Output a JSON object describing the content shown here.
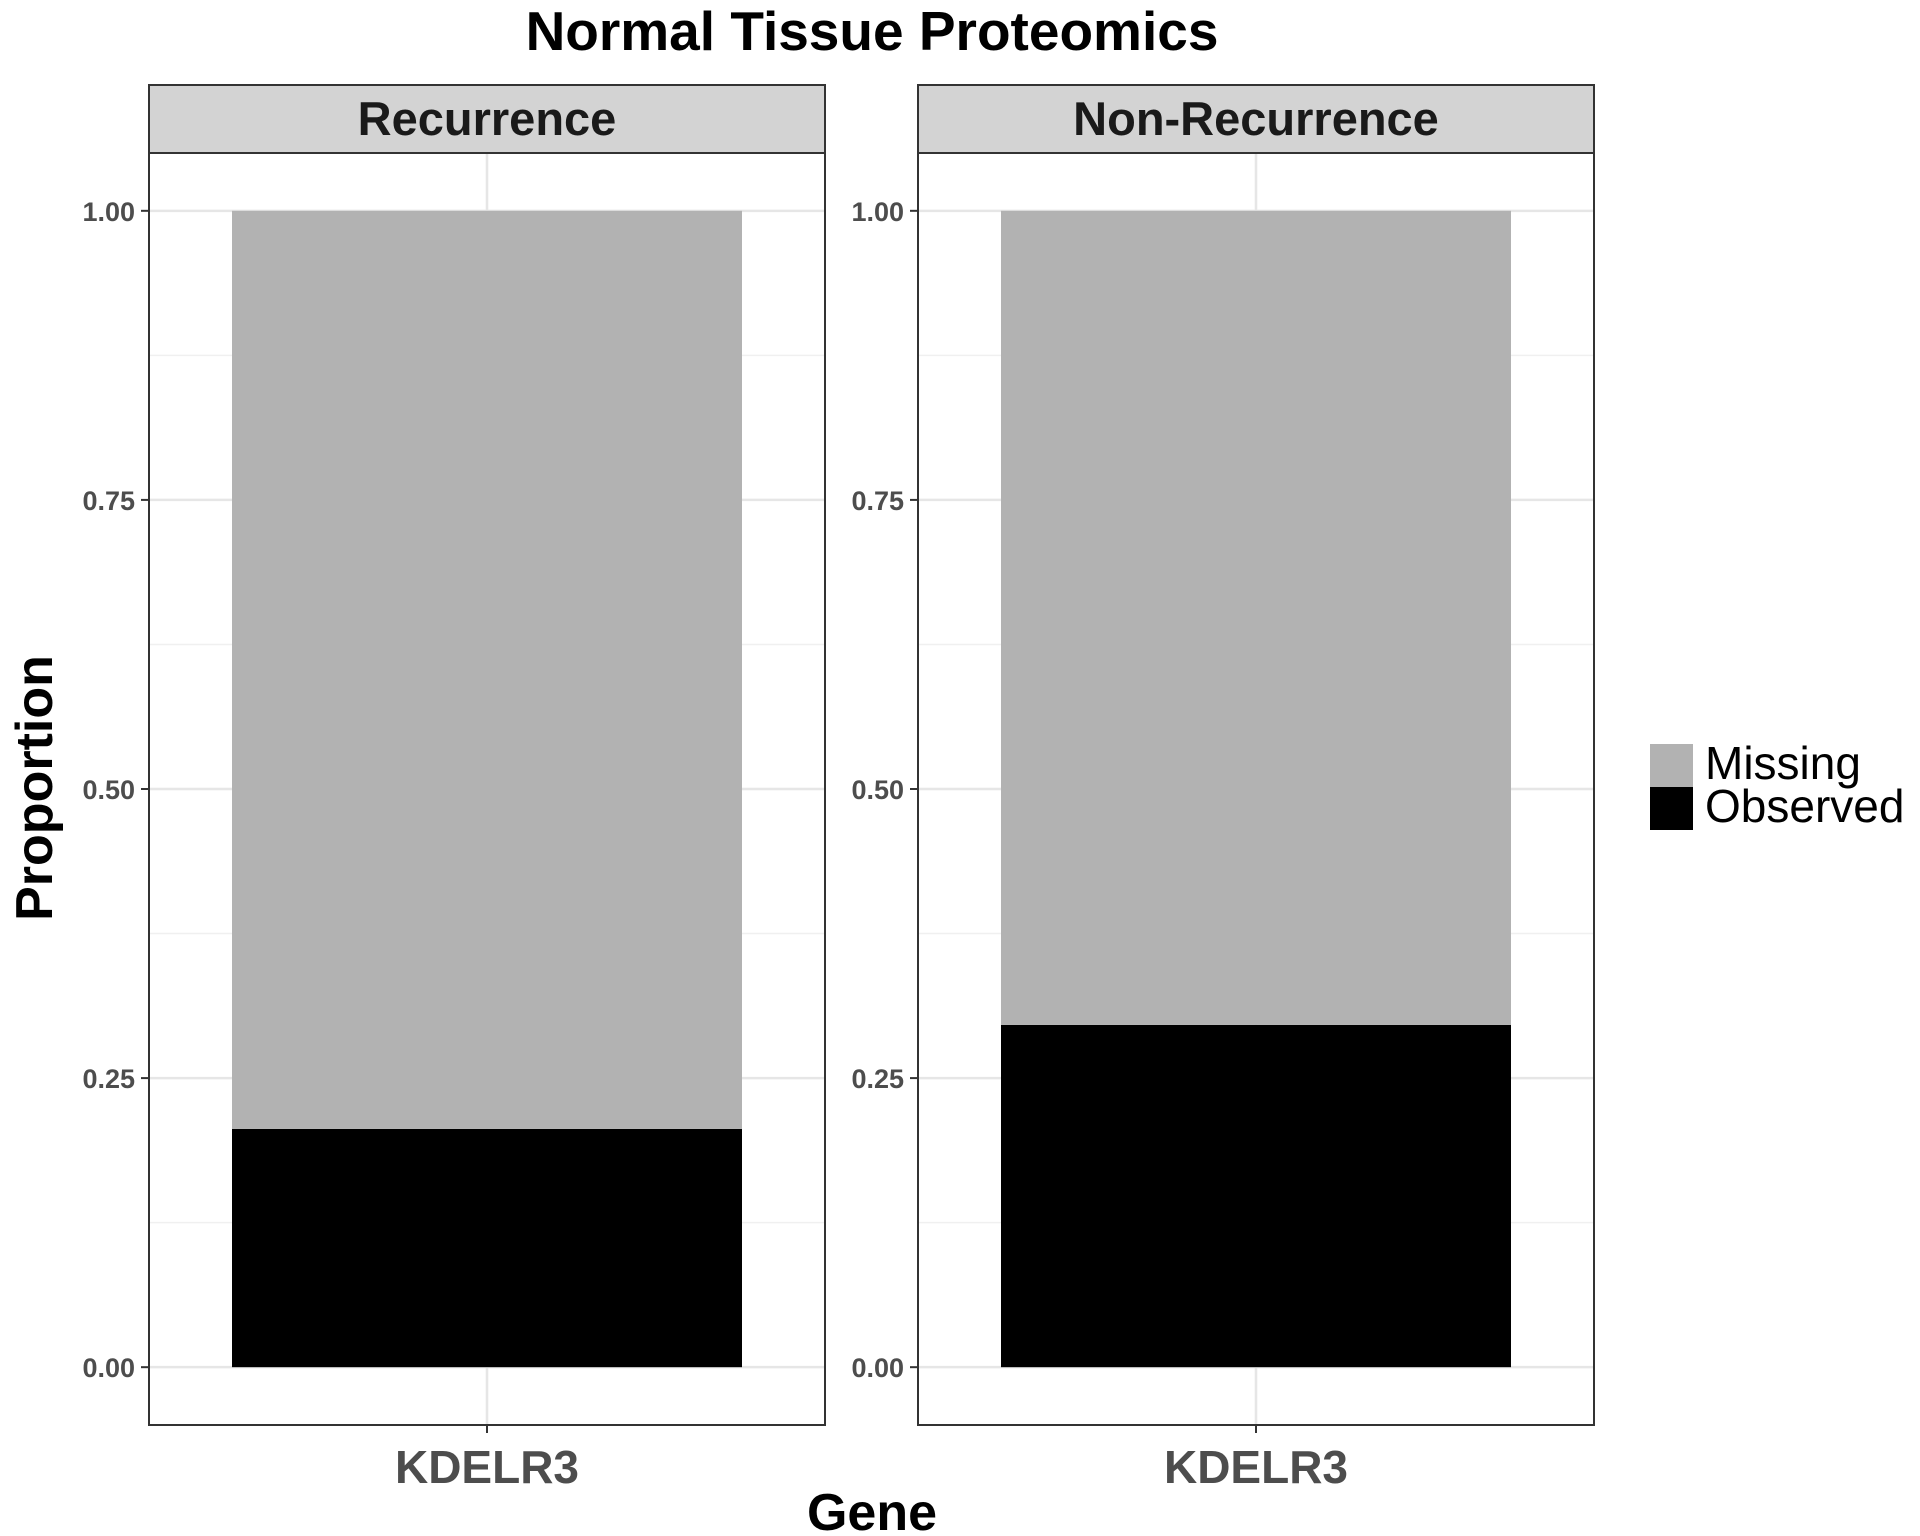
{
  "chart_data": {
    "type": "bar",
    "stacked": true,
    "title": "Normal Tissue Proteomics",
    "xlabel": "Gene",
    "ylabel": "Proportion",
    "ylim": [
      -0.05,
      1.05
    ],
    "yticks": [
      0.0,
      0.25,
      0.5,
      0.75,
      1.0
    ],
    "ytick_labels": [
      "0.00",
      "0.25",
      "0.50",
      "0.75",
      "1.00"
    ],
    "grid": true,
    "legend_position": "right",
    "legend": [
      {
        "label": "Missing",
        "color": "#b2b2b2"
      },
      {
        "label": "Observed",
        "color": "#000000"
      }
    ],
    "panels": [
      {
        "strip": "Recurrence",
        "categories": [
          "KDELR3"
        ],
        "series": [
          {
            "name": "Observed",
            "color": "#000000",
            "values": [
              0.206
            ]
          },
          {
            "name": "Missing",
            "color": "#b2b2b2",
            "values": [
              0.794
            ]
          }
        ]
      },
      {
        "strip": "Non-Recurrence",
        "categories": [
          "KDELR3"
        ],
        "series": [
          {
            "name": "Observed",
            "color": "#000000",
            "values": [
              0.296
            ]
          },
          {
            "name": "Missing",
            "color": "#b2b2b2",
            "values": [
              0.704
            ]
          }
        ]
      }
    ]
  }
}
